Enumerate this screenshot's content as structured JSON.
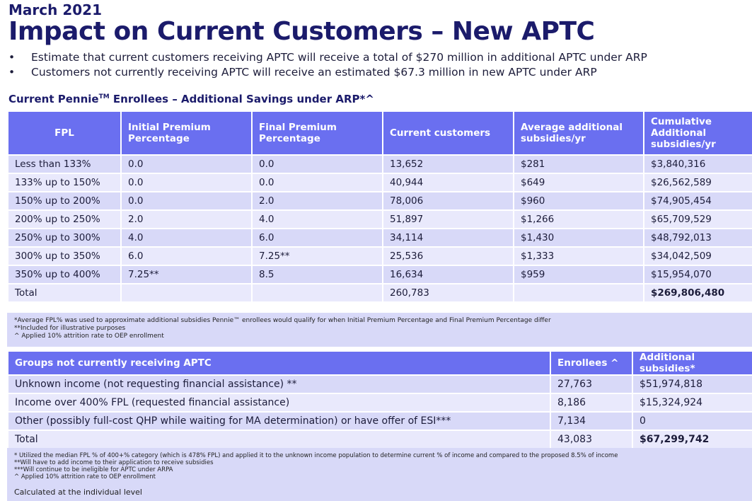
{
  "month": "March 2021",
  "title": "Impact on Current Customers – New APTC",
  "bullets": [
    "Estimate that current customers receiving APTC will receive a total of $270 million in additional APTC under ARP",
    "Customers not currently receiving APTC will receive an estimated $67.3 million in new APTC under ARP"
  ],
  "subtitle": {
    "pre": "Current Pennie",
    "tm": "TM",
    "post": " Enrollees – Additional Savings under ARP*^"
  },
  "table1": {
    "headers": [
      "FPL",
      "Initial Premium Percentage",
      "Final Premium Percentage",
      "Current customers",
      "Average additional subsidies/yr",
      "Cumulative Additional subsidies/yr"
    ],
    "rows": [
      [
        "Less than 133%",
        "0.0",
        "0.0",
        "13,652",
        "$281",
        "$3,840,316"
      ],
      [
        "133% up to 150%",
        "0.0",
        "0.0",
        "40,944",
        "$649",
        "$26,562,589"
      ],
      [
        "150% up to 200%",
        "0.0",
        "2.0",
        "78,006",
        "$960",
        "$74,905,454"
      ],
      [
        "200% up to 250%",
        "2.0",
        "4.0",
        "51,897",
        "$1,266",
        "$65,709,529"
      ],
      [
        "250% up to 300%",
        "4.0",
        "6.0",
        "34,114",
        "$1,430",
        "$48,792,013"
      ],
      [
        "300% up to 350%",
        "6.0",
        "7.25**",
        "25,536",
        "$1,333",
        "$34,042,509"
      ],
      [
        "350% up to 400%",
        "7.25**",
        "8.5",
        "16,634",
        "$959",
        "$15,954,070"
      ],
      [
        "Total",
        "",
        "",
        "260,783",
        "",
        "$269,806,480"
      ]
    ],
    "footnotes": [
      "*Average FPL% was used to approximate additional subsidies Pennie™ enrollees would qualify for when Initial Premium Percentage and Final Premium Percentage differ",
      "**Included for illustrative purposes",
      "^ Applied 10% attrition rate to OEP enrollment"
    ]
  },
  "table2": {
    "headers": [
      "Groups not currently receiving APTC",
      "Enrollees ^",
      "Additional subsidies*"
    ],
    "rows": [
      [
        "Unknown income (not requesting financial assistance) **",
        "27,763",
        "$51,974,818"
      ],
      [
        "Income over 400% FPL (requested financial assistance)",
        "8,186",
        "$15,324,924"
      ],
      [
        "Other (possibly full-cost QHP while waiting for MA determination) or have offer of ESI***",
        "7,134",
        "0"
      ],
      [
        "Total",
        "43,083",
        "$67,299,742"
      ]
    ],
    "footnotes": [
      "* Utilized the median FPL % of 400+% category (which is 478% FPL) and applied it to the unknown income population to determine current % of income and compared to the proposed 8.5% of income",
      "**Will have to add income to their application to receive subsidies",
      "***Will continue to be ineligible for APTC under ARPA",
      "^ Applied 10% attrition rate to OEP enrollment"
    ],
    "note": "Calculated at the individual level"
  },
  "colors": {
    "header": "#6a6ff0",
    "row_dark": "#d8d9f8",
    "row_light": "#e9e9fc",
    "title": "#1b1b6b"
  }
}
